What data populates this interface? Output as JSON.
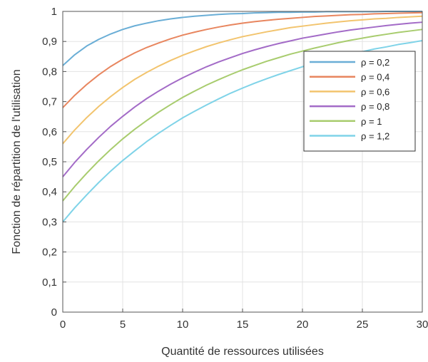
{
  "chart_data": {
    "type": "line",
    "title": "",
    "xlabel": "Quantité de ressources utilisées",
    "ylabel": "Fonction de répartition de l'utilisation",
    "xlim": [
      0,
      30
    ],
    "ylim": [
      0,
      1
    ],
    "x_ticks": [
      "0",
      "5",
      "10",
      "15",
      "20",
      "25",
      "30"
    ],
    "y_ticks": [
      "0",
      "0,1",
      "0,2",
      "0,3",
      "0,4",
      "0,5",
      "0,6",
      "0,7",
      "0,8",
      "0,9",
      "1"
    ],
    "grid": true,
    "legend_position": "top-right",
    "x": [
      0,
      1,
      2,
      3,
      4,
      5,
      6,
      7,
      8,
      9,
      10,
      11,
      12,
      13,
      14,
      15,
      16,
      17,
      18,
      19,
      20,
      21,
      22,
      23,
      24,
      25,
      26,
      27,
      28,
      29,
      30
    ],
    "series": [
      {
        "name": "ρ = 0,2",
        "color": "#6aaed6",
        "values": [
          0.82,
          0.856,
          0.885,
          0.907,
          0.925,
          0.94,
          0.952,
          0.961,
          0.969,
          0.975,
          0.98,
          0.984,
          0.987,
          0.99,
          0.992,
          0.993,
          0.995,
          0.996,
          0.997,
          0.997,
          0.998,
          0.998,
          0.999,
          0.999,
          0.999,
          0.999,
          0.999,
          1.0,
          1.0,
          1.0,
          1.0
        ]
      },
      {
        "name": "ρ = 0,4",
        "color": "#e8865f",
        "values": [
          0.68,
          0.721,
          0.757,
          0.789,
          0.817,
          0.841,
          0.862,
          0.88,
          0.895,
          0.909,
          0.921,
          0.931,
          0.94,
          0.948,
          0.955,
          0.961,
          0.966,
          0.97,
          0.974,
          0.977,
          0.98,
          0.983,
          0.985,
          0.987,
          0.989,
          0.99,
          0.992,
          0.993,
          0.994,
          0.995,
          0.996
        ]
      },
      {
        "name": "ρ = 0,6",
        "color": "#f2c46e",
        "values": [
          0.56,
          0.606,
          0.647,
          0.684,
          0.717,
          0.747,
          0.774,
          0.797,
          0.818,
          0.837,
          0.854,
          0.869,
          0.883,
          0.895,
          0.906,
          0.916,
          0.924,
          0.932,
          0.939,
          0.946,
          0.951,
          0.956,
          0.961,
          0.965,
          0.969,
          0.972,
          0.975,
          0.977,
          0.98,
          0.982,
          0.984
        ]
      },
      {
        "name": "ρ = 0,8",
        "color": "#a36bc7",
        "values": [
          0.45,
          0.498,
          0.541,
          0.581,
          0.618,
          0.651,
          0.682,
          0.71,
          0.735,
          0.758,
          0.779,
          0.798,
          0.816,
          0.832,
          0.846,
          0.86,
          0.872,
          0.883,
          0.893,
          0.902,
          0.911,
          0.918,
          0.925,
          0.932,
          0.938,
          0.943,
          0.948,
          0.953,
          0.957,
          0.961,
          0.964
        ]
      },
      {
        "name": "ρ = 1",
        "color": "#a8cc6e",
        "values": [
          0.37,
          0.418,
          0.462,
          0.503,
          0.541,
          0.576,
          0.608,
          0.637,
          0.665,
          0.69,
          0.714,
          0.735,
          0.755,
          0.773,
          0.79,
          0.806,
          0.82,
          0.834,
          0.846,
          0.858,
          0.868,
          0.878,
          0.887,
          0.896,
          0.904,
          0.911,
          0.918,
          0.924,
          0.93,
          0.935,
          0.94
        ]
      },
      {
        "name": "ρ = 1,2",
        "color": "#7fd3e8",
        "values": [
          0.3,
          0.347,
          0.39,
          0.431,
          0.469,
          0.504,
          0.536,
          0.567,
          0.595,
          0.621,
          0.646,
          0.668,
          0.689,
          0.709,
          0.728,
          0.745,
          0.761,
          0.776,
          0.79,
          0.803,
          0.816,
          0.827,
          0.838,
          0.848,
          0.858,
          0.866,
          0.875,
          0.882,
          0.89,
          0.896,
          0.903
        ]
      }
    ]
  }
}
